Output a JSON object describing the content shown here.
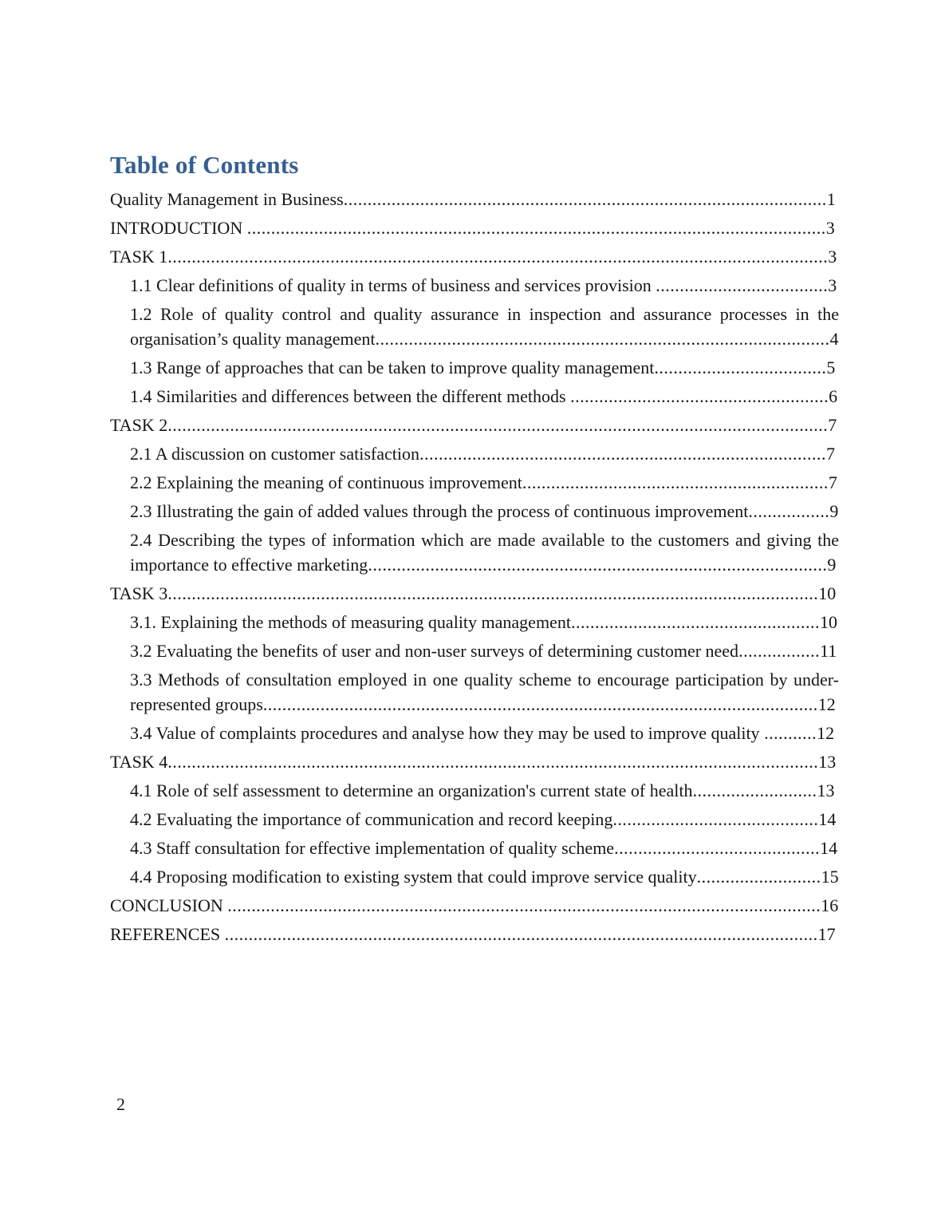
{
  "page": {
    "heading": "Table of Contents",
    "heading_color": "#365f91",
    "footer_page_number": "2"
  },
  "toc": {
    "entries": [
      {
        "text": "Quality Management in Business",
        "page": "1",
        "level": 1
      },
      {
        "text": "INTRODUCTION ",
        "page": "3",
        "level": 1
      },
      {
        "text": "TASK 1",
        "page": "3",
        "level": 1
      },
      {
        "text": "1.1 Clear definitions of quality in terms of business and services provision ",
        "page": "3",
        "level": 2
      },
      {
        "text": "1.2 Role of quality control and quality assurance in inspection and assurance processes in the organisation’s quality management",
        "page": "4",
        "level": 2
      },
      {
        "text": "1.3 Range of approaches that can be taken to improve quality management",
        "page": "5",
        "level": 2
      },
      {
        "text": "1.4 Similarities and differences between the different methods ",
        "page": "6",
        "level": 2
      },
      {
        "text": "TASK 2",
        "page": "7",
        "level": 1
      },
      {
        "text": "2.1 A discussion on customer satisfaction",
        "page": "7",
        "level": 2
      },
      {
        "text": "2.2 Explaining the meaning of continuous improvement",
        "page": "7",
        "level": 2
      },
      {
        "text": "2.3 Illustrating the gain of added values through the process of continuous improvement",
        "page": "9",
        "level": 2
      },
      {
        "text": "2.4 Describing the types of information which are made available to the customers and giving the importance to effective marketing",
        "page": "9",
        "level": 2
      },
      {
        "text": "TASK 3",
        "page": "10",
        "level": 1
      },
      {
        "text": "3.1. Explaining the methods of measuring quality management",
        "page": "10",
        "level": 2
      },
      {
        "text": "3.2 Evaluating the benefits of user and non-user surveys of determining customer need",
        "page": "11",
        "level": 2
      },
      {
        "text": "3.3 Methods of consultation employed in one quality scheme to encourage participation by under-represented groups",
        "page": "12",
        "level": 2
      },
      {
        "text": "3.4 Value of complaints procedures and analyse how they may be used to improve quality ",
        "page": "12",
        "level": 2
      },
      {
        "text": "TASK 4",
        "page": "13",
        "level": 1
      },
      {
        "text": "4.1 Role of self assessment to determine an organization's current state of health",
        "page": "13",
        "level": 2
      },
      {
        "text": "4.2 Evaluating the importance of communication and record keeping",
        "page": "14",
        "level": 2
      },
      {
        "text": "4.3 Staff consultation for effective implementation of quality scheme",
        "page": "14",
        "level": 2
      },
      {
        "text": "4.4 Proposing modification to existing system that could improve service quality",
        "page": "15",
        "level": 2
      },
      {
        "text": "CONCLUSION ",
        "page": "16",
        "level": 1
      },
      {
        "text": "REFERENCES ",
        "page": "17",
        "level": 1
      }
    ]
  }
}
